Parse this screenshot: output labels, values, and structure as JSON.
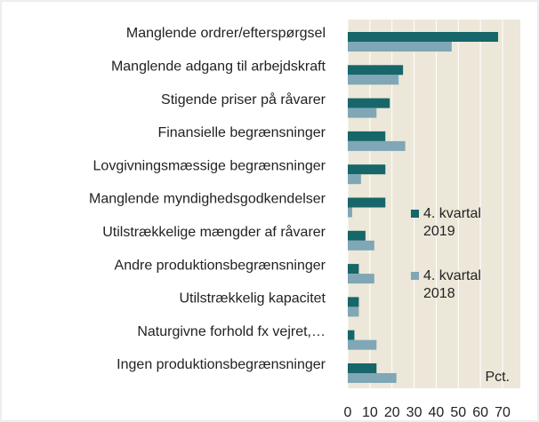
{
  "chart_data": {
    "type": "barh",
    "categories": [
      "Manglende ordrer/efterspørgsel",
      "Manglende adgang til arbejdskraft",
      "Stigende priser på råvarer",
      "Finansielle begrænsninger",
      "Lovgivningsmæssige begrænsninger",
      "Manglende myndighedsgodkendelser",
      "Utilstrækkelige mængder af råvarer",
      "Andre produktionsbegrænsninger",
      "Utilstrækkelig kapacitet",
      "Naturgivne forhold fx vejret,…",
      "Ingen produktionsbegrænsninger"
    ],
    "series": [
      {
        "name": "4. kvartal 2019",
        "color": "#16666a",
        "values": [
          68,
          25,
          19,
          17,
          17,
          17,
          8,
          5,
          5,
          3,
          13
        ]
      },
      {
        "name": "4. kvartal 2018",
        "color": "#7fa7b6",
        "values": [
          47,
          23,
          13,
          26,
          6,
          2,
          12,
          12,
          5,
          13,
          22
        ]
      }
    ],
    "unit_label": "Pct.",
    "xlim": [
      0,
      70
    ],
    "xticks": [
      0,
      10,
      20,
      30,
      40,
      50,
      60,
      70
    ],
    "grid": true
  }
}
